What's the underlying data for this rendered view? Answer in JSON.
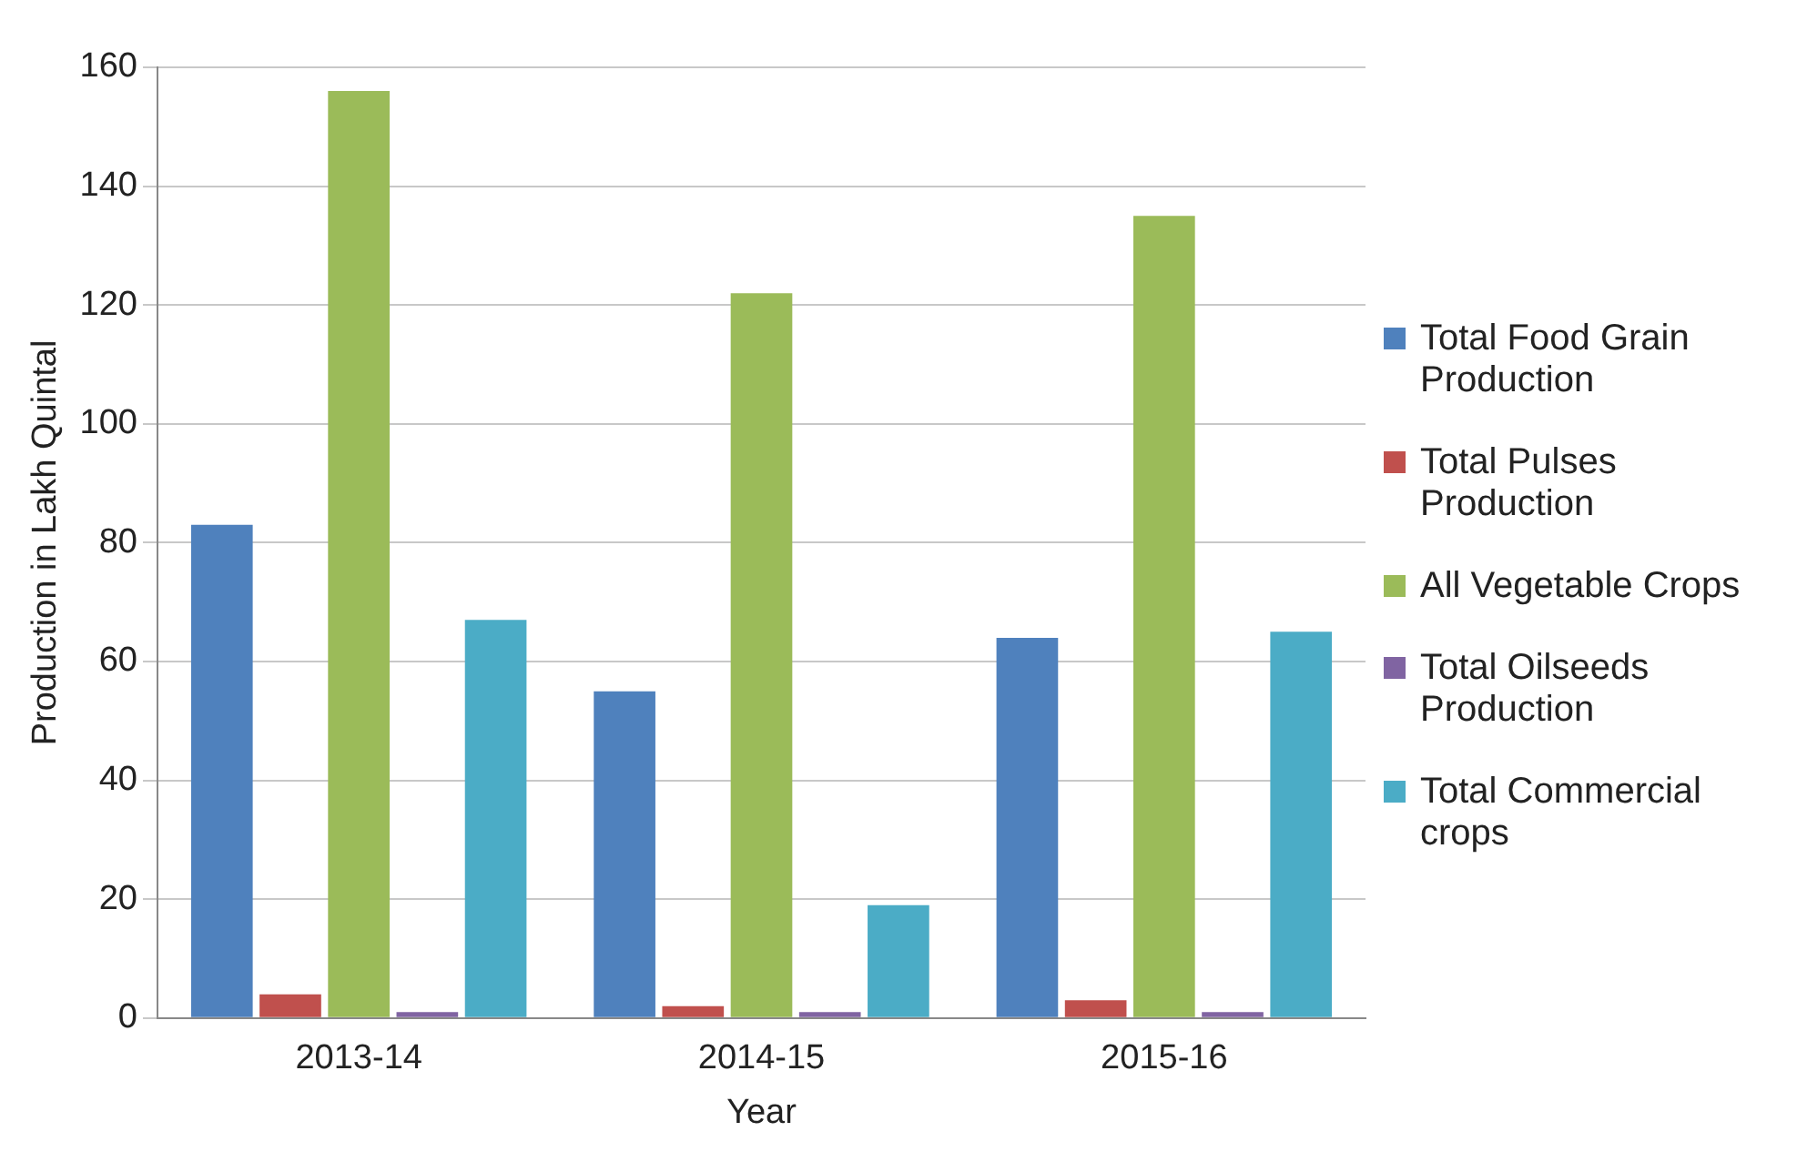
{
  "chart_data": {
    "type": "bar",
    "xlabel": "Year",
    "ylabel": "Production in Lakh Quintal",
    "categories": [
      "2013-14",
      "2014-15",
      "2015-16"
    ],
    "series": [
      {
        "name": "Total Food Grain Production",
        "color": "#4f81bd",
        "values": [
          83,
          55,
          64
        ]
      },
      {
        "name": "Total Pulses Production",
        "color": "#c0504d",
        "values": [
          4,
          2,
          3
        ]
      },
      {
        "name": "All Vegetable Crops",
        "color": "#9bbb59",
        "values": [
          156,
          122,
          135
        ]
      },
      {
        "name": "Total Oilseeds Production",
        "color": "#8064a2",
        "values": [
          1,
          1,
          1
        ]
      },
      {
        "name": "Total Commercial crops",
        "color": "#4bacc6",
        "values": [
          67,
          19,
          65
        ]
      }
    ],
    "ylim": [
      0,
      160
    ],
    "yticks": [
      0,
      20,
      40,
      60,
      80,
      100,
      120,
      140,
      160
    ],
    "grid": "y",
    "legend": "right"
  }
}
